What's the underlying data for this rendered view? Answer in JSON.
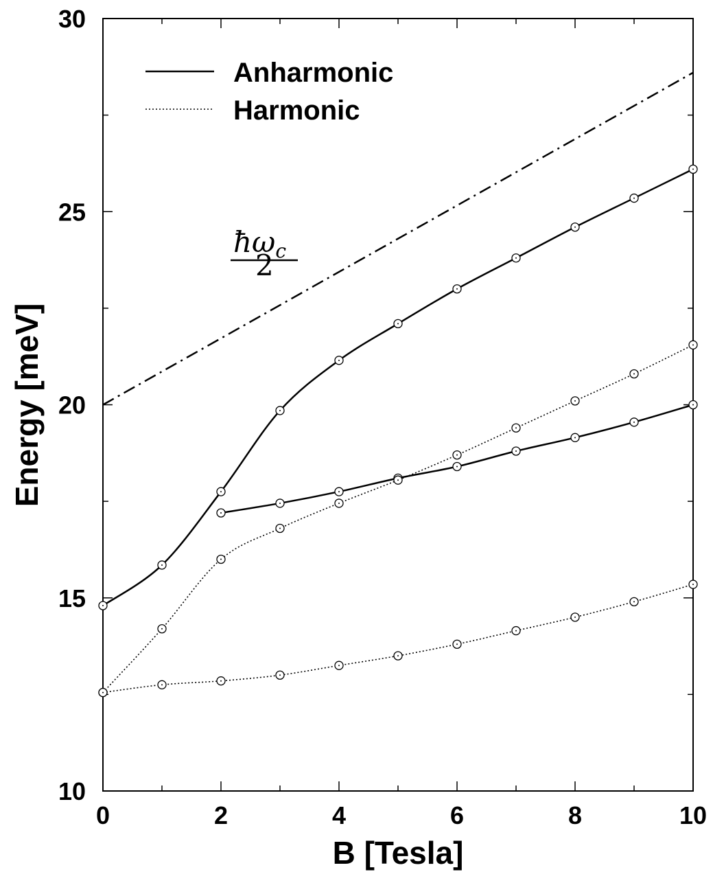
{
  "chart_data": {
    "type": "line",
    "title": "",
    "xlabel": "B [Tesla]",
    "ylabel": "Energy [meV]",
    "xlim": [
      0,
      10
    ],
    "ylim": [
      10,
      30
    ],
    "x_ticks": [
      "0",
      "2",
      "4",
      "6",
      "8",
      "10"
    ],
    "y_ticks": [
      "10",
      "15",
      "20",
      "25",
      "30"
    ],
    "grid": false,
    "legend_position": "top-left",
    "legend": [
      {
        "label": "Anharmonic",
        "style": "solid"
      },
      {
        "label": "Harmonic",
        "style": "dotted"
      }
    ],
    "annotation": {
      "numerator": "ħω",
      "subscript": "c",
      "denominator": "2"
    },
    "series": [
      {
        "style": "dashdot",
        "markers": false,
        "x": [
          0,
          10
        ],
        "y": [
          20.0,
          28.6
        ]
      },
      {
        "style": "solid",
        "markers": true,
        "x": [
          0,
          1,
          2,
          3,
          4,
          5,
          6,
          7,
          8,
          9,
          10
        ],
        "y": [
          14.8,
          15.85,
          17.75,
          19.85,
          21.15,
          22.1,
          23.0,
          23.8,
          24.6,
          25.35,
          26.1
        ]
      },
      {
        "style": "solid",
        "markers": true,
        "x": [
          2,
          3,
          4,
          5,
          6,
          7,
          8,
          9,
          10
        ],
        "y": [
          17.2,
          17.45,
          17.75,
          18.1,
          18.4,
          18.8,
          19.15,
          19.55,
          20.0
        ]
      },
      {
        "style": "dotted",
        "markers": true,
        "x": [
          0,
          1,
          2,
          3,
          4,
          5,
          6,
          7,
          8,
          9,
          10
        ],
        "y": [
          12.55,
          14.2,
          16.0,
          16.8,
          17.45,
          18.05,
          18.7,
          19.4,
          20.1,
          20.8,
          21.55
        ]
      },
      {
        "style": "dotted",
        "markers": true,
        "x": [
          0,
          1,
          2,
          3,
          4,
          5,
          6,
          7,
          8,
          9,
          10
        ],
        "y": [
          12.55,
          12.75,
          12.85,
          13.0,
          13.25,
          13.5,
          13.8,
          14.15,
          14.5,
          14.9,
          15.35
        ]
      }
    ]
  }
}
